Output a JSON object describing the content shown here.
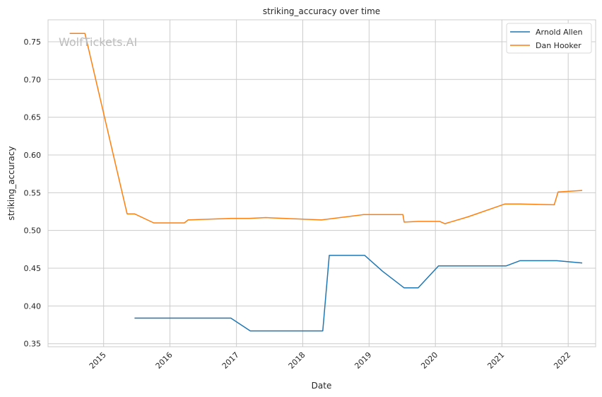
{
  "watermark": "WolfTickets.AI",
  "chart_data": {
    "type": "line",
    "title": "striking_accuracy over time",
    "xlabel": "Date",
    "ylabel": "striking_accuracy",
    "x_type": "date",
    "xlim": [
      "2014-03-01",
      "2022-06-01"
    ],
    "ylim": [
      0.346,
      0.779
    ],
    "x_ticks": [
      {
        "value": "2015-01-01",
        "label": "2015"
      },
      {
        "value": "2016-01-01",
        "label": "2016"
      },
      {
        "value": "2017-01-01",
        "label": "2017"
      },
      {
        "value": "2018-01-01",
        "label": "2018"
      },
      {
        "value": "2019-01-01",
        "label": "2019"
      },
      {
        "value": "2020-01-01",
        "label": "2020"
      },
      {
        "value": "2021-01-01",
        "label": "2021"
      },
      {
        "value": "2022-01-01",
        "label": "2022"
      }
    ],
    "y_ticks": [
      {
        "value": 0.35,
        "label": "0.35"
      },
      {
        "value": 0.4,
        "label": "0.40"
      },
      {
        "value": 0.45,
        "label": "0.45"
      },
      {
        "value": 0.5,
        "label": "0.50"
      },
      {
        "value": 0.55,
        "label": "0.55"
      },
      {
        "value": 0.6,
        "label": "0.60"
      },
      {
        "value": 0.65,
        "label": "0.65"
      },
      {
        "value": 0.7,
        "label": "0.70"
      },
      {
        "value": 0.75,
        "label": "0.75"
      }
    ],
    "grid": true,
    "legend_position": "top-right",
    "series": [
      {
        "name": "Arnold Allen",
        "color": "#1f77b4",
        "x": [
          "2015-06-20",
          "2016-12-01",
          "2017-03-18",
          "2018-04-21",
          "2018-05-27",
          "2018-12-08",
          "2019-03-16",
          "2019-07-13",
          "2019-09-28",
          "2020-01-18",
          "2021-01-24",
          "2021-04-10",
          "2021-10-30",
          "2022-03-19"
        ],
        "y": [
          0.384,
          0.384,
          0.367,
          0.367,
          0.467,
          0.467,
          0.446,
          0.424,
          0.424,
          0.453,
          0.453,
          0.46,
          0.46,
          0.457
        ]
      },
      {
        "name": "Dan Hooker",
        "color": "#ff7f0e",
        "x": [
          "2014-06-28",
          "2014-09-20",
          "2015-05-10",
          "2015-06-20",
          "2015-10-04",
          "2016-03-20",
          "2016-04-10",
          "2016-12-03",
          "2017-03-11",
          "2017-06-11",
          "2018-04-14",
          "2018-12-02",
          "2019-07-06",
          "2019-07-13",
          "2019-09-28",
          "2020-01-25",
          "2020-02-22",
          "2020-06-27",
          "2021-01-17",
          "2021-04-10",
          "2021-10-16",
          "2021-11-06",
          "2022-03-19"
        ],
        "y": [
          0.761,
          0.761,
          0.522,
          0.522,
          0.51,
          0.51,
          0.514,
          0.516,
          0.516,
          0.517,
          0.514,
          0.521,
          0.521,
          0.511,
          0.512,
          0.512,
          0.509,
          0.518,
          0.535,
          0.535,
          0.534,
          0.551,
          0.553
        ]
      }
    ]
  }
}
